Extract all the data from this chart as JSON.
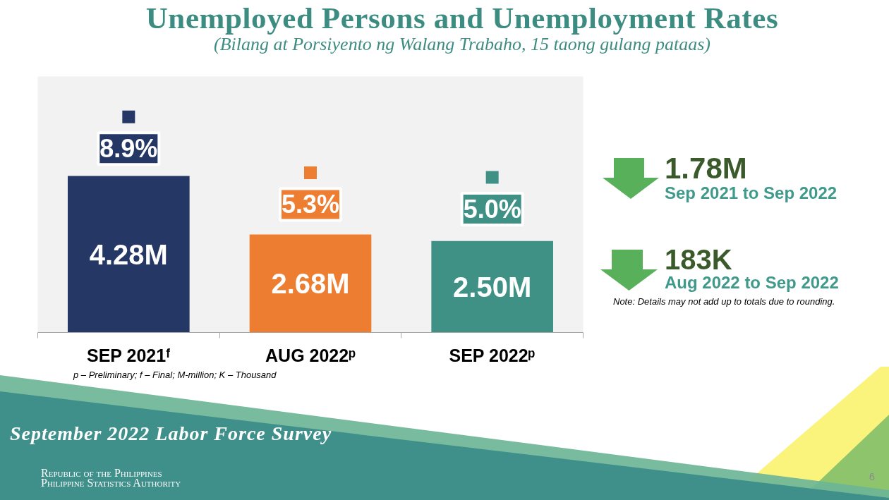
{
  "chart_data": {
    "type": "bar",
    "title": "Unemployed Persons and Unemployment Rates",
    "subtitle": "(Bilang at Porsiyento ng Walang Trabaho, 15 taong gulang pataas)",
    "categories": [
      "SEP 2021ᶠ",
      "AUG 2022ᵖ",
      "SEP 2022ᵖ"
    ],
    "series": [
      {
        "colors": [
          "#253865",
          "#ed7d31",
          "#3f9186"
        ],
        "values": [
          4.28,
          2.68,
          2.5
        ],
        "value_labels": [
          "4.28M",
          "2.68M",
          "2.50M"
        ]
      },
      {
        "type": "scatter",
        "axis": "y2",
        "marker": "square",
        "colors": [
          "#253865",
          "#ed7d31",
          "#3f9186"
        ],
        "values": [
          8.9,
          5.3,
          5.0
        ],
        "value_labels": [
          "8.9%",
          "5.3%",
          "5.0%"
        ]
      }
    ],
    "ylim": [
      0,
      7
    ],
    "y2lim": [
      -5,
      11.5
    ],
    "tick_labels": "x",
    "annotations": [
      "1.78M",
      "Sep 2021 to Sep 2022",
      "183K",
      "Aug 2022 to Sep 2022",
      "Note: Details may not add up to totals due to rounding.",
      "p – Preliminary; f – Final; M-million; K – Thousand",
      "September 2022 Labor Force Survey",
      "Republic of the Philippines",
      "Philippine Statistics Authority",
      "6"
    ]
  }
}
